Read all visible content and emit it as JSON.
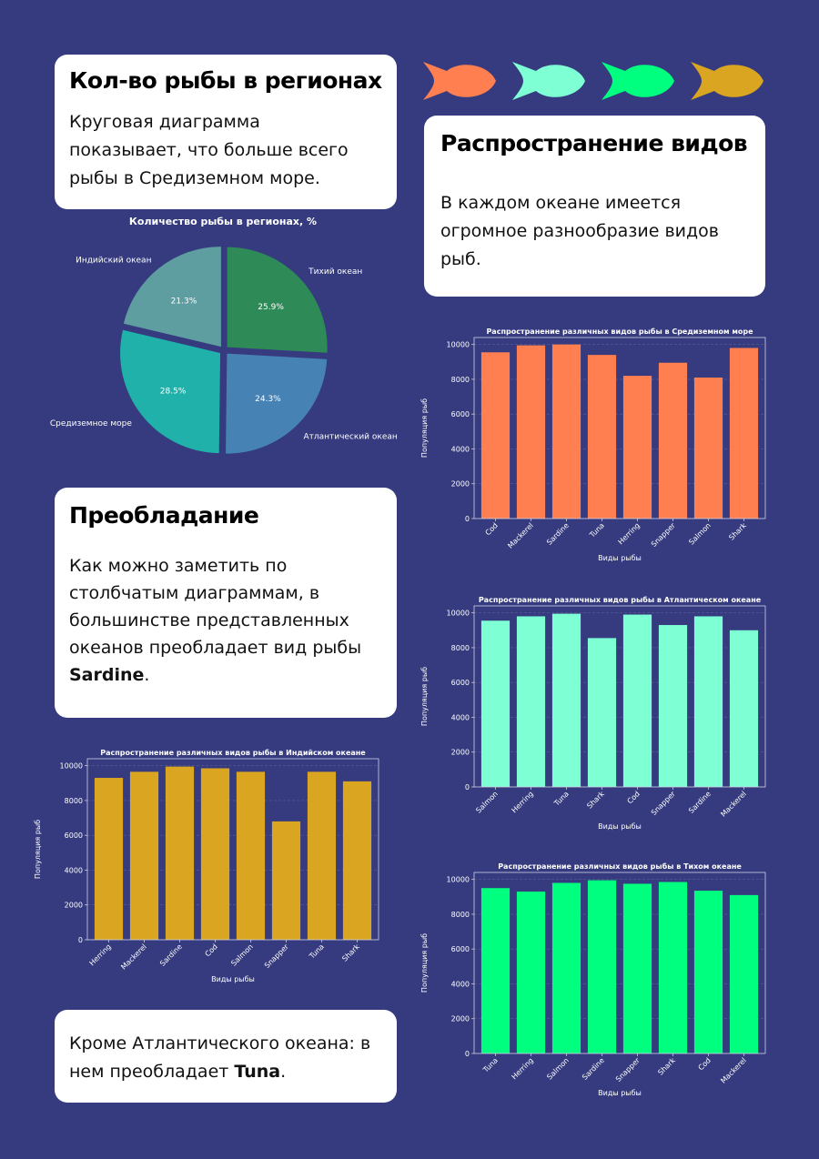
{
  "cards": {
    "regions": {
      "title": "Кол-во рыбы в регионах",
      "text": "Круговая диаграмма показывает, что больше всего рыбы в Средиземном море."
    },
    "species": {
      "title": "Распространение видов",
      "text": "В каждом океане имеется огромное разнообразие видов рыб."
    },
    "prevalence": {
      "title": "Преобладание",
      "text_before": "Как можно заметить по столбчатым диаграммам, в большинстве представленных океанов преобладает вид рыбы ",
      "highlight": "Sardine",
      "text_after": "."
    },
    "atlantic_note": {
      "text_before": "Кроме Атлантического океана: в нем преобладает ",
      "highlight": "Tuna",
      "text_after": "."
    }
  },
  "fish_colors": [
    "#ff7f50",
    "#7fffd4",
    "#00ff7f",
    "#daa520"
  ],
  "chart_data": [
    {
      "id": "pie",
      "type": "pie",
      "title": "Количество рыбы в регионах, %",
      "labels": [
        "Тихий океан",
        "Атлантический океан",
        "Средиземное море",
        "Индийский океан"
      ],
      "values": [
        25.9,
        24.3,
        28.5,
        21.3
      ],
      "value_labels": [
        "25.9%",
        "24.3%",
        "28.5%",
        "21.3%"
      ],
      "colors": [
        "#2e8b57",
        "#4682b4",
        "#20b2aa",
        "#5f9ea0"
      ],
      "exploded": true
    },
    {
      "id": "med",
      "type": "bar",
      "title": "Распространение различных видов рыбы в Средиземном море",
      "xlabel": "Виды рыбы",
      "ylabel": "Популяция рыб",
      "categories": [
        "Cod",
        "Mackerel",
        "Sardine",
        "Tuna",
        "Herring",
        "Snapper",
        "Salmon",
        "Shark"
      ],
      "values": [
        9550,
        9950,
        10000,
        9400,
        8200,
        8950,
        8100,
        9800
      ],
      "ylim": [
        0,
        10400
      ],
      "yticks": [
        "0",
        "2000",
        "4000",
        "6000",
        "8000",
        "10000"
      ],
      "color": "#ff7f50",
      "grid": true
    },
    {
      "id": "atl",
      "type": "bar",
      "title": "Распространение различных видов рыбы в Атлантическом океане",
      "xlabel": "Виды рыбы",
      "ylabel": "Популяция рыб",
      "categories": [
        "Salmon",
        "Herring",
        "Tuna",
        "Shark",
        "Cod",
        "Snapper",
        "Sardine",
        "Mackerel"
      ],
      "values": [
        9550,
        9800,
        9950,
        8550,
        9900,
        9300,
        9800,
        9000
      ],
      "ylim": [
        0,
        10400
      ],
      "yticks": [
        "0",
        "2000",
        "4000",
        "6000",
        "8000",
        "10000"
      ],
      "color": "#7fffd4",
      "grid": true
    },
    {
      "id": "ind",
      "type": "bar",
      "title": "Распространение различных видов рыбы в Индийском океане",
      "xlabel": "Виды рыбы",
      "ylabel": "Популяция рыб",
      "categories": [
        "Herring",
        "Mackerel",
        "Sardine",
        "Cod",
        "Salmon",
        "Snapper",
        "Tuna",
        "Shark"
      ],
      "values": [
        9300,
        9650,
        9950,
        9850,
        9650,
        6800,
        9650,
        9100
      ],
      "ylim": [
        0,
        10400
      ],
      "yticks": [
        "0",
        "2000",
        "4000",
        "6000",
        "8000",
        "10000"
      ],
      "color": "#daa520",
      "grid": true
    },
    {
      "id": "pac",
      "type": "bar",
      "title": "Распространение различных видов рыбы в Тихом океане",
      "xlabel": "Виды рыбы",
      "ylabel": "Популяция рыб",
      "categories": [
        "Tuna",
        "Herring",
        "Salmon",
        "Sardine",
        "Snapper",
        "Shark",
        "Cod",
        "Mackerel"
      ],
      "values": [
        9500,
        9300,
        9800,
        9950,
        9750,
        9850,
        9350,
        9100
      ],
      "ylim": [
        0,
        10400
      ],
      "yticks": [
        "0",
        "2000",
        "4000",
        "6000",
        "8000",
        "10000"
      ],
      "color": "#00ff7f",
      "grid": true
    }
  ]
}
